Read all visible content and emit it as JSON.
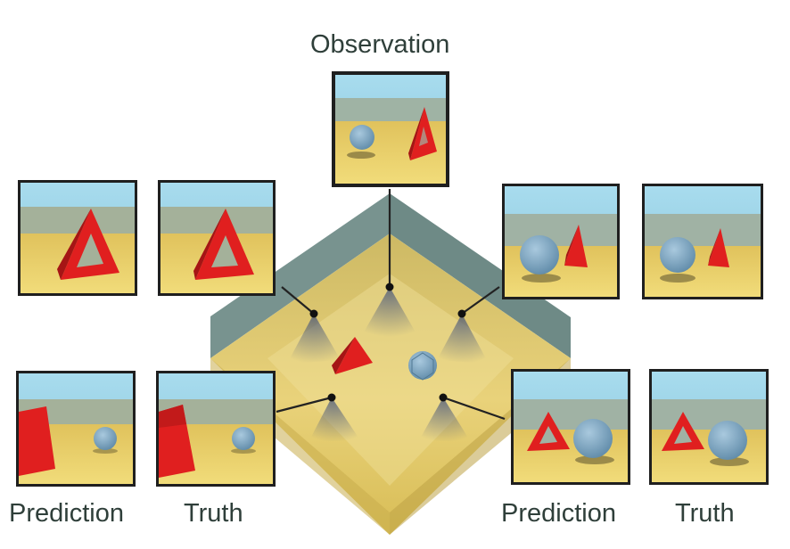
{
  "title": "Observation",
  "labels": {
    "left_prediction": "Prediction",
    "left_truth": "Truth",
    "right_prediction": "Prediction",
    "right_truth": "Truth"
  },
  "colors": {
    "label_text": "#2f3f3a",
    "sky": "#9fd4e8",
    "ground": "#e8cf64",
    "wall": "#6c8b86",
    "red_object": "#dc2020",
    "blue_object": "#7aa6c4",
    "frame": "#2a2a2a"
  },
  "icons": {
    "red_object": "red-triangle-prism-icon",
    "blue_object": "blue-icosahedron-icon",
    "camera": "camera-viewpoint-icon"
  }
}
